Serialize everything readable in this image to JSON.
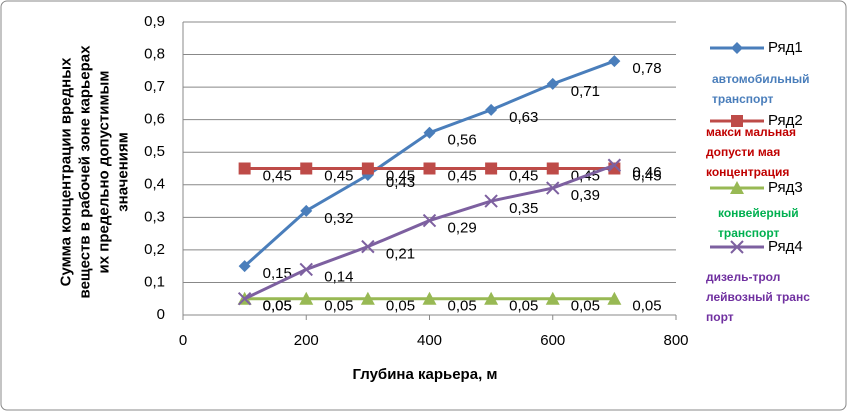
{
  "chart_data": {
    "type": "line",
    "xlabel": "Глубина карьера, м",
    "ylabel": [
      "Сумма концентрации вредных",
      "веществ в рабочей зоне карьерах",
      "их предельно допустимым",
      "значениям"
    ],
    "x": [
      100,
      200,
      300,
      400,
      500,
      600,
      700
    ],
    "xlim": [
      0,
      800
    ],
    "xticks": [
      0,
      200,
      400,
      600,
      800
    ],
    "ylim": [
      0,
      0.9
    ],
    "yticks": [
      0,
      {
        "value": 0.1,
        "label": "0,1"
      },
      {
        "value": 0.2,
        "label": "0,2"
      },
      {
        "value": 0.3,
        "label": "0,3"
      },
      {
        "value": 0.4,
        "label": "0,4"
      },
      {
        "value": 0.5,
        "label": "0,5"
      },
      {
        "value": 0.6,
        "label": "0,6"
      },
      {
        "value": 0.7,
        "label": "0,7"
      },
      {
        "value": 0.8,
        "label": "0,8"
      },
      {
        "value": 0.9,
        "label": "0,9"
      }
    ],
    "grid": true,
    "legend": "right",
    "series": [
      {
        "name": "Ряд1",
        "color": "#4a7ebb",
        "marker": "diamond",
        "values": [
          0.15,
          0.32,
          0.43,
          0.56,
          0.63,
          0.71,
          0.78
        ],
        "value_labels": [
          "0,15",
          "0,32",
          "0,43",
          "0,56",
          "0,63",
          "0,71",
          "0,78"
        ]
      },
      {
        "name": "Ряд2",
        "color": "#be4b48",
        "marker": "square",
        "values": [
          0.45,
          0.45,
          0.45,
          0.45,
          0.45,
          0.45,
          0.45
        ],
        "value_labels": [
          "0,45",
          "0,45",
          "0,45",
          "0,45",
          "0,45",
          "0,45",
          "0,45"
        ]
      },
      {
        "name": "Ряд3",
        "color": "#98b954",
        "marker": "triangle",
        "values": [
          0.05,
          0.05,
          0.05,
          0.05,
          0.05,
          0.05,
          0.05
        ],
        "value_labels": [
          "0,05",
          "0,05",
          "0,05",
          "0,05",
          "0,05",
          "0,05",
          "0,05"
        ]
      },
      {
        "name": "Ряд4",
        "color": "#7d60a0",
        "marker": "x",
        "values": [
          0.05,
          0.14,
          0.21,
          0.29,
          0.35,
          0.39,
          0.46
        ],
        "value_labels": [
          "0,05",
          "0,14",
          "0,21",
          "0,29",
          "0,35",
          "0,39",
          "0,46"
        ]
      }
    ],
    "annotations": [
      {
        "lines": [
          "автомобильный",
          "транспорт"
        ],
        "color": "#4a7ebb"
      },
      {
        "lines": [
          "макси мальная",
          "допусти мая",
          "концентрация"
        ],
        "color": "#c00000"
      },
      {
        "lines": [
          "конвейерный",
          "транспорт"
        ],
        "color": "#00b050"
      },
      {
        "lines": [
          "дизель-трол",
          "лейвозный транс",
          "порт"
        ],
        "color": "#7030a0"
      }
    ]
  }
}
